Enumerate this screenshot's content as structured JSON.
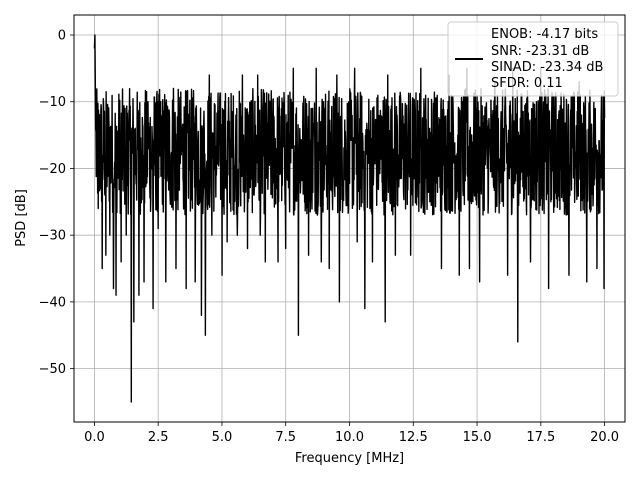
{
  "chart_data": {
    "type": "line",
    "xlabel": "Frequency [MHz]",
    "ylabel": "PSD [dB]",
    "xlim": [
      -0.8,
      20.8
    ],
    "ylim": [
      -58,
      3
    ],
    "grid": true,
    "x_ticks": [
      0.0,
      2.5,
      5.0,
      7.5,
      10.0,
      12.5,
      15.0,
      17.5,
      20.0
    ],
    "x_tick_labels": [
      "0.0",
      "2.5",
      "5.0",
      "7.5",
      "10.0",
      "12.5",
      "15.0",
      "17.5",
      "20.0"
    ],
    "y_ticks": [
      0,
      -10,
      -20,
      -30,
      -40,
      -50
    ],
    "y_tick_labels": [
      "0",
      "−10",
      "−20",
      "−30",
      "−40",
      "−50"
    ],
    "legend": {
      "placement": "top-right",
      "entries": [
        "ENOB: -4.17 bits",
        "SNR: -23.31 dB",
        "SINAD: -23.34 dB",
        "SFDR: 0.11"
      ]
    },
    "series": [
      {
        "color": "#000000",
        "x_range": [
          0.0,
          20.0
        ],
        "baseline": -18,
        "band_top": -8,
        "band_bottom": -27,
        "start_peak": [
          [
            0.0,
            -2.0
          ],
          [
            0.02,
            0.0
          ],
          [
            0.05,
            -14.0
          ]
        ],
        "dips": [
          [
            0.15,
            -26
          ],
          [
            0.3,
            -35
          ],
          [
            0.45,
            -33
          ],
          [
            0.6,
            -30
          ],
          [
            0.75,
            -38
          ],
          [
            0.85,
            -39
          ],
          [
            1.05,
            -34
          ],
          [
            1.25,
            -30
          ],
          [
            1.45,
            -55
          ],
          [
            1.55,
            -43
          ],
          [
            1.75,
            -39
          ],
          [
            1.95,
            -37
          ],
          [
            2.3,
            -41
          ],
          [
            2.5,
            -29
          ],
          [
            2.8,
            -37
          ],
          [
            3.2,
            -35
          ],
          [
            3.6,
            -38
          ],
          [
            3.95,
            -37
          ],
          [
            4.2,
            -42
          ],
          [
            4.35,
            -45
          ],
          [
            4.6,
            -30
          ],
          [
            5.0,
            -36
          ],
          [
            5.2,
            -31
          ],
          [
            5.6,
            -30
          ],
          [
            6.0,
            -32
          ],
          [
            6.5,
            -30
          ],
          [
            6.7,
            -34
          ],
          [
            7.2,
            -34
          ],
          [
            7.5,
            -32
          ],
          [
            8.0,
            -45
          ],
          [
            8.4,
            -33
          ],
          [
            8.9,
            -34
          ],
          [
            9.2,
            -35
          ],
          [
            9.6,
            -40
          ],
          [
            10.3,
            -31
          ],
          [
            10.6,
            -41
          ],
          [
            10.9,
            -34
          ],
          [
            11.4,
            -43
          ],
          [
            11.8,
            -33
          ],
          [
            12.4,
            -33
          ],
          [
            12.8,
            -39
          ],
          [
            13.6,
            -35
          ],
          [
            14.3,
            -36
          ],
          [
            14.7,
            -35
          ],
          [
            15.1,
            -37
          ],
          [
            15.7,
            -41
          ],
          [
            16.2,
            -36
          ],
          [
            16.6,
            -46
          ],
          [
            17.1,
            -34
          ],
          [
            17.8,
            -38
          ],
          [
            18.6,
            -36
          ],
          [
            19.3,
            -37
          ],
          [
            19.7,
            -35
          ],
          [
            19.98,
            -38
          ]
        ],
        "peaks": [
          [
            1.2,
            -11
          ],
          [
            2.1,
            -10
          ],
          [
            3.1,
            -8
          ],
          [
            4.5,
            -6
          ],
          [
            5.8,
            -6
          ],
          [
            6.4,
            -6
          ],
          [
            7.8,
            -5
          ],
          [
            8.7,
            -5
          ],
          [
            9.5,
            -6
          ],
          [
            10.2,
            -5
          ],
          [
            11.5,
            -6
          ],
          [
            12.8,
            -5
          ],
          [
            13.9,
            -6
          ],
          [
            14.6,
            -5
          ],
          [
            15.7,
            -7
          ],
          [
            16.4,
            -5
          ],
          [
            17.5,
            -5
          ],
          [
            19.0,
            -7
          ]
        ]
      }
    ]
  }
}
